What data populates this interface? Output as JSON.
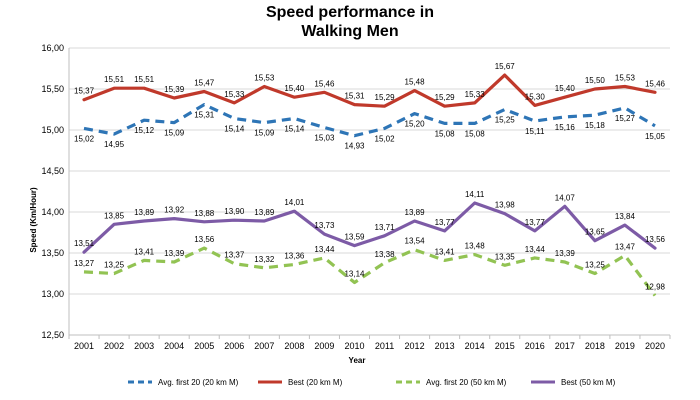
{
  "chart_data": {
    "type": "line",
    "title_line1": "Speed performance in",
    "title_line2": "Walking Men",
    "xlabel": "Year",
    "ylabel": "Speed (Km/Hour)",
    "ylim": [
      12.5,
      16.0
    ],
    "yticks": [
      12.5,
      13.0,
      13.5,
      14.0,
      14.5,
      15.0,
      15.5,
      16.0
    ],
    "ytick_labels": [
      "12,50",
      "13,00",
      "13,50",
      "14,00",
      "14,50",
      "15,00",
      "15,50",
      "16,00"
    ],
    "grid": true,
    "legend_position": "bottom",
    "categories": [
      "2001",
      "2002",
      "2003",
      "2004",
      "2005",
      "2006",
      "2007",
      "2008",
      "2009",
      "2010",
      "2011",
      "2012",
      "2013",
      "2014",
      "2015",
      "2016",
      "2017",
      "2018",
      "2019",
      "2020"
    ],
    "series": [
      {
        "name": "Avg. first 20 (20 km M)",
        "color": "#2e75b6",
        "dash": true,
        "label_pos": "below",
        "values": [
          15.02,
          14.95,
          15.12,
          15.09,
          15.31,
          15.14,
          15.09,
          15.14,
          15.03,
          14.93,
          15.02,
          15.2,
          15.08,
          15.08,
          15.25,
          15.11,
          15.16,
          15.18,
          15.27,
          15.05
        ],
        "labels": [
          "15,02",
          "14,95",
          "15,12",
          "15,09",
          "15,31",
          "15,14",
          "15,09",
          "15,14",
          "15,03",
          "14,93",
          "15,02",
          "15,20",
          "15,08",
          "15,08",
          "15,25",
          "15,11",
          "15,16",
          "15,18",
          "15,27",
          "15,05"
        ]
      },
      {
        "name": "Best (20 km M)",
        "color": "#c0392b",
        "dash": false,
        "label_pos": "above",
        "values": [
          15.37,
          15.51,
          15.51,
          15.39,
          15.47,
          15.33,
          15.53,
          15.4,
          15.46,
          15.31,
          15.29,
          15.48,
          15.29,
          15.33,
          15.67,
          15.3,
          15.4,
          15.5,
          15.53,
          15.46
        ],
        "labels": [
          "15,37",
          "15,51",
          "15,51",
          "15,39",
          "15,47",
          "15,33",
          "15,53",
          "15,40",
          "15,46",
          "15,31",
          "15,29",
          "15,48",
          "15,29",
          "15,33",
          "15,67",
          "15,30",
          "15,40",
          "15,50",
          "15,53",
          "15,46"
        ]
      },
      {
        "name": "Avg. first 20 (50 km M)",
        "color": "#92c353",
        "dash": true,
        "label_pos": "above",
        "values": [
          13.27,
          13.25,
          13.41,
          13.39,
          13.56,
          13.37,
          13.32,
          13.36,
          13.44,
          13.14,
          13.38,
          13.54,
          13.41,
          13.48,
          13.35,
          13.44,
          13.39,
          13.25,
          13.47,
          12.98
        ],
        "labels": [
          "13,27",
          "13,25",
          "13,41",
          "13,39",
          "13,56",
          "13,37",
          "13,32",
          "13,36",
          "13,44",
          "13,14",
          "13,38",
          "13,54",
          "13,41",
          "13,48",
          "13,35",
          "13,44",
          "13,39",
          "13,25",
          "13,47",
          "12,98"
        ]
      },
      {
        "name": "Best (50 km M)",
        "color": "#7d5ba6",
        "dash": false,
        "label_pos": "above",
        "values": [
          13.51,
          13.85,
          13.89,
          13.92,
          13.88,
          13.9,
          13.89,
          14.01,
          13.73,
          13.59,
          13.71,
          13.89,
          13.77,
          14.11,
          13.98,
          13.77,
          14.07,
          13.65,
          13.84,
          13.56
        ],
        "labels": [
          "13,51",
          "13,85",
          "13,89",
          "13,92",
          "13,88",
          "13,90",
          "13,89",
          "14,01",
          "13,73",
          "13,59",
          "13,71",
          "13,89",
          "13,77",
          "14,11",
          "13,98",
          "13,77",
          "14,07",
          "13,65",
          "13,84",
          "13,56"
        ]
      }
    ]
  }
}
